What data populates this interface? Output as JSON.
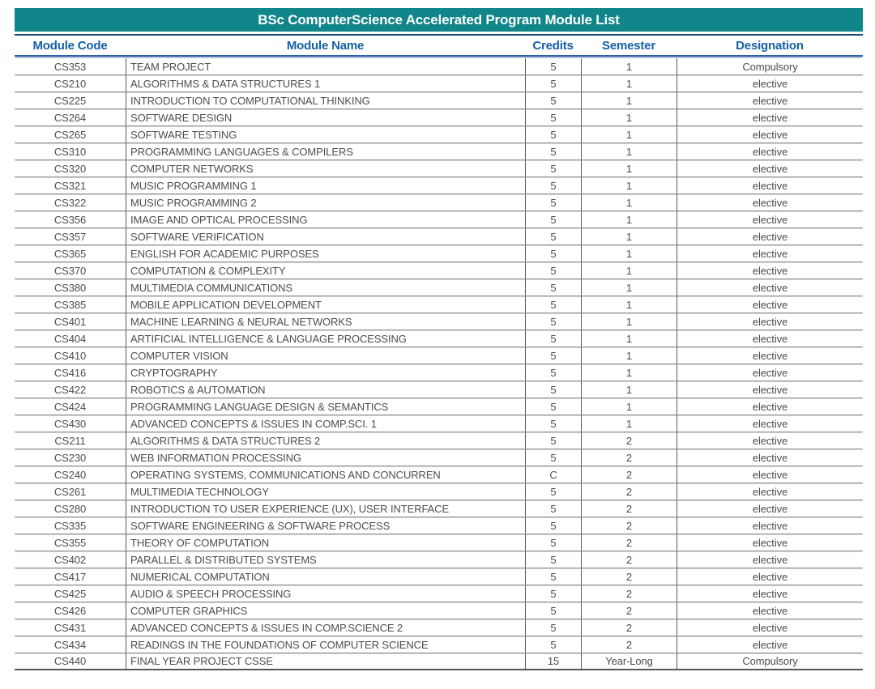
{
  "title": "BSc ComputerScience Accelerated Program Module List",
  "colors": {
    "banner_teal": "#10858A",
    "banner_rule_navy": "#1E4A72",
    "header_text_blue": "#1560A7",
    "header_rule_blue": "#2B62A4",
    "row_line_gray": "#8E8E8E",
    "cell_text_gray": "#4D4D4D"
  },
  "table": {
    "columns": [
      "Module Code",
      "Module Name",
      "Credits",
      "Semester",
      "Designation"
    ],
    "rows": [
      [
        "CS353",
        "TEAM PROJECT",
        "5",
        "1",
        "Compulsory"
      ],
      [
        "CS210",
        "ALGORITHMS & DATA STRUCTURES 1",
        "5",
        "1",
        "elective"
      ],
      [
        "CS225",
        "INTRODUCTION TO COMPUTATIONAL THINKING",
        "5",
        "1",
        "elective"
      ],
      [
        "CS264",
        "SOFTWARE DESIGN",
        "5",
        "1",
        "elective"
      ],
      [
        "CS265",
        "SOFTWARE TESTING",
        "5",
        "1",
        "elective"
      ],
      [
        "CS310",
        "PROGRAMMING LANGUAGES & COMPILERS",
        "5",
        "1",
        "elective"
      ],
      [
        "CS320",
        "COMPUTER NETWORKS",
        "5",
        "1",
        "elective"
      ],
      [
        "CS321",
        "MUSIC PROGRAMMING 1",
        "5",
        "1",
        "elective"
      ],
      [
        "CS322",
        "MUSIC PROGRAMMING 2",
        "5",
        "1",
        "elective"
      ],
      [
        "CS356",
        "IMAGE AND OPTICAL PROCESSING",
        "5",
        "1",
        "elective"
      ],
      [
        "CS357",
        "SOFTWARE VERIFICATION",
        "5",
        "1",
        "elective"
      ],
      [
        "CS365",
        "ENGLISH FOR ACADEMIC PURPOSES",
        "5",
        "1",
        "elective"
      ],
      [
        "CS370",
        "COMPUTATION & COMPLEXITY",
        "5",
        "1",
        "elective"
      ],
      [
        "CS380",
        "MULTIMEDIA COMMUNICATIONS",
        "5",
        "1",
        "elective"
      ],
      [
        "CS385",
        "MOBILE APPLICATION DEVELOPMENT",
        "5",
        "1",
        "elective"
      ],
      [
        "CS401",
        "MACHINE LEARNING & NEURAL NETWORKS",
        "5",
        "1",
        "elective"
      ],
      [
        "CS404",
        "ARTIFICIAL INTELLIGENCE & LANGUAGE PROCESSING",
        "5",
        "1",
        "elective"
      ],
      [
        "CS410",
        "COMPUTER VISION",
        "5",
        "1",
        "elective"
      ],
      [
        "CS416",
        "CRYPTOGRAPHY",
        "5",
        "1",
        "elective"
      ],
      [
        "CS422",
        "ROBOTICS & AUTOMATION",
        "5",
        "1",
        "elective"
      ],
      [
        "CS424",
        "PROGRAMMING LANGUAGE DESIGN & SEMANTICS",
        "5",
        "1",
        "elective"
      ],
      [
        "CS430",
        "ADVANCED CONCEPTS & ISSUES IN COMP.SCI. 1",
        "5",
        "1",
        "elective"
      ],
      [
        "CS211",
        "ALGORITHMS & DATA STRUCTURES 2",
        "5",
        "2",
        "elective"
      ],
      [
        "CS230",
        "WEB INFORMATION PROCESSING",
        "5",
        "2",
        "elective"
      ],
      [
        "CS240",
        "OPERATING SYSTEMS, COMMUNICATIONS AND CONCURREN",
        "C",
        "2",
        "elective"
      ],
      [
        "CS261",
        "MULTIMEDIA TECHNOLOGY",
        "5",
        "2",
        "elective"
      ],
      [
        "CS280",
        "INTRODUCTION TO USER EXPERIENCE (UX), USER INTERFACE",
        "5",
        "2",
        "elective"
      ],
      [
        "CS335",
        "SOFTWARE ENGINEERING & SOFTWARE PROCESS",
        "5",
        "2",
        "elective"
      ],
      [
        "CS355",
        "THEORY OF COMPUTATION",
        "5",
        "2",
        "elective"
      ],
      [
        "CS402",
        "PARALLEL & DISTRIBUTED SYSTEMS",
        "5",
        "2",
        "elective"
      ],
      [
        "CS417",
        "NUMERICAL COMPUTATION",
        "5",
        "2",
        "elective"
      ],
      [
        "CS425",
        "AUDIO & SPEECH PROCESSING",
        "5",
        "2",
        "elective"
      ],
      [
        "CS426",
        "COMPUTER GRAPHICS",
        "5",
        "2",
        "elective"
      ],
      [
        "CS431",
        "ADVANCED CONCEPTS & ISSUES IN COMP.SCIENCE 2",
        "5",
        "2",
        "elective"
      ],
      [
        "CS434",
        "READINGS IN THE FOUNDATIONS OF COMPUTER SCIENCE",
        "5",
        "2",
        "elective"
      ],
      [
        "CS440",
        "FINAL YEAR PROJECT CSSE",
        "15",
        "Year-Long",
        "Compulsory"
      ]
    ]
  }
}
